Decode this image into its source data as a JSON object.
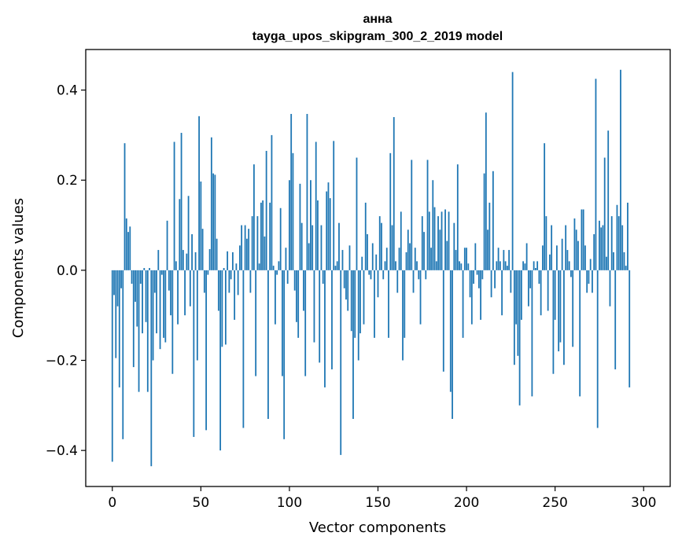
{
  "chart_data": {
    "type": "bar",
    "title": "анна",
    "subtitle": "tayga_upos_skipgram_300_2_2019 model",
    "xlabel": "Vector components",
    "ylabel": "Components values",
    "xlim": [
      -15,
      315
    ],
    "ylim": [
      -0.48,
      0.49
    ],
    "x_ticks": [
      0,
      50,
      100,
      150,
      200,
      250,
      300
    ],
    "x_tick_labels": [
      "0",
      "50",
      "100",
      "150",
      "200",
      "250",
      "300"
    ],
    "y_ticks": [
      -0.4,
      -0.2,
      0.0,
      0.2,
      0.4
    ],
    "y_tick_labels": [
      "−0.4",
      "−0.2",
      "0.0",
      "0.2",
      "0.4"
    ],
    "bar_color": "#1f77b4",
    "grid": false,
    "series": [
      {
        "name": "анна",
        "values": [
          -0.425,
          -0.055,
          -0.195,
          -0.08,
          -0.26,
          -0.04,
          -0.375,
          0.282,
          0.115,
          0.085,
          0.097,
          -0.03,
          -0.215,
          -0.07,
          -0.125,
          -0.27,
          -0.03,
          -0.14,
          0.005,
          -0.115,
          -0.27,
          0.005,
          -0.435,
          -0.2,
          -0.05,
          -0.14,
          0.045,
          -0.175,
          -0.01,
          -0.15,
          -0.16,
          0.11,
          -0.045,
          -0.1,
          -0.23,
          0.285,
          0.02,
          -0.12,
          0.158,
          0.305,
          0.045,
          -0.1,
          0.037,
          0.165,
          -0.08,
          0.08,
          -0.37,
          0.04,
          -0.2,
          0.342,
          0.197,
          0.092,
          -0.05,
          -0.355,
          -0.01,
          0.047,
          0.295,
          0.215,
          0.212,
          0.07,
          -0.09,
          -0.4,
          -0.17,
          0.005,
          -0.165,
          0.042,
          -0.05,
          -0.02,
          0.04,
          -0.11,
          0.015,
          -0.055,
          0.055,
          0.1,
          -0.35,
          0.1,
          0.07,
          0.092,
          -0.05,
          0.12,
          0.235,
          -0.235,
          0.12,
          0.015,
          0.15,
          0.155,
          0.075,
          0.265,
          -0.33,
          0.15,
          0.3,
          0.01,
          -0.12,
          -0.01,
          0.02,
          0.138,
          -0.235,
          -0.375,
          0.05,
          -0.03,
          0.2,
          0.347,
          0.26,
          -0.045,
          -0.115,
          -0.15,
          0.192,
          0.105,
          -0.09,
          -0.235,
          0.347,
          0.06,
          0.2,
          0.1,
          -0.16,
          0.285,
          0.155,
          -0.205,
          0.1,
          -0.03,
          -0.26,
          0.175,
          0.195,
          0.16,
          -0.22,
          0.287,
          0.01,
          0.02,
          0.105,
          -0.41,
          0.045,
          -0.04,
          -0.065,
          -0.09,
          0.055,
          -0.135,
          -0.33,
          -0.15,
          0.25,
          -0.2,
          -0.14,
          0.03,
          -0.12,
          0.15,
          0.08,
          -0.01,
          -0.02,
          0.06,
          -0.15,
          0.035,
          -0.06,
          0.12,
          0.105,
          -0.02,
          0.02,
          0.05,
          -0.15,
          0.26,
          0.1,
          0.34,
          0.02,
          -0.05,
          0.05,
          0.13,
          -0.2,
          -0.15,
          0.04,
          0.09,
          0.06,
          0.245,
          -0.05,
          0.05,
          0.02,
          -0.02,
          -0.12,
          0.12,
          0.085,
          -0.02,
          0.245,
          0.13,
          0.05,
          0.2,
          0.14,
          0.02,
          0.12,
          0.09,
          0.13,
          -0.225,
          0.135,
          0.065,
          0.13,
          -0.27,
          -0.33,
          0.105,
          0.045,
          0.235,
          0.02,
          0.015,
          -0.15,
          0.05,
          0.05,
          0.015,
          -0.06,
          -0.12,
          -0.03,
          0.06,
          -0.01,
          -0.04,
          -0.11,
          -0.02,
          0.215,
          0.35,
          0.09,
          0.15,
          -0.06,
          0.22,
          -0.04,
          0.02,
          0.05,
          0.02,
          -0.1,
          0.045,
          0.02,
          0.01,
          0.045,
          -0.05,
          0.44,
          -0.21,
          -0.12,
          -0.19,
          -0.3,
          -0.11,
          0.02,
          0.015,
          0.06,
          -0.08,
          -0.04,
          -0.28,
          0.02,
          0.005,
          0.02,
          -0.03,
          -0.1,
          0.055,
          0.282,
          0.12,
          -0.09,
          0.035,
          0.1,
          -0.23,
          -0.11,
          0.055,
          -0.18,
          -0.16,
          0.07,
          -0.21,
          0.1,
          0.045,
          0.02,
          -0.015,
          -0.17,
          0.115,
          0.09,
          0.065,
          -0.28,
          0.135,
          0.135,
          0.055,
          -0.05,
          -0.03,
          0.025,
          -0.05,
          0.08,
          0.425,
          -0.35,
          0.11,
          0.095,
          0.1,
          0.25,
          0.03,
          0.31,
          -0.08,
          0.12,
          0.04,
          -0.22,
          0.145,
          0.12,
          0.445,
          0.1,
          0.04,
          0.01,
          0.15,
          -0.26,
          0.0,
          0.0
        ]
      }
    ]
  }
}
